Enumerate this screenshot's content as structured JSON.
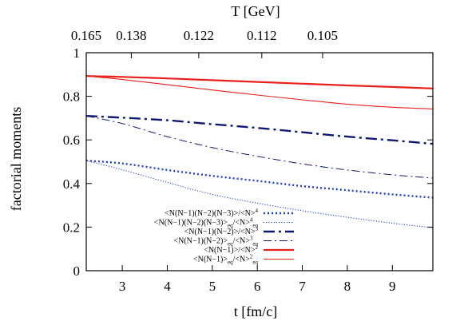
{
  "chart_data": {
    "type": "line",
    "title": "",
    "xlabel": "t [fm/c]",
    "ylabel": "factorial moments",
    "x2label": "T [GeV]",
    "xlim": [
      2.2,
      9.9
    ],
    "ylim": [
      0,
      1
    ],
    "grid": false,
    "legend_position": "bottom-center",
    "x_ticks": [
      3,
      4,
      5,
      6,
      7,
      8,
      9
    ],
    "x_tick_labels": [
      "3",
      "4",
      "5",
      "6",
      "7",
      "8",
      "9"
    ],
    "y_ticks": [
      0,
      0.2,
      0.4,
      0.6,
      0.8,
      1
    ],
    "y_tick_labels": [
      "0",
      "0.2",
      "0.4",
      "0.6",
      "0.8",
      "1"
    ],
    "x2_ticks": [
      {
        "t": 2.2,
        "label": "0.165"
      },
      {
        "t": 3.2,
        "label": "0.138"
      },
      {
        "t": 4.7,
        "label": "0.122"
      },
      {
        "t": 6.1,
        "label": "0.112"
      },
      {
        "t": 7.45,
        "label": "0.105"
      }
    ],
    "x": [
      2.2,
      3.0,
      4.0,
      5.0,
      6.0,
      7.0,
      8.0,
      9.0,
      9.9
    ],
    "series": [
      {
        "legend": {
          "main": "<N(N−1)(N−2)(N−3)>/<N>",
          "sup": "4",
          "sub": ""
        },
        "color": "#1f3fe6",
        "style": "dotted-thick",
        "values": [
          0.505,
          0.492,
          0.462,
          0.435,
          0.412,
          0.388,
          0.369,
          0.35,
          0.335
        ]
      },
      {
        "legend": {
          "main": "<N(N−1)(N−2)(N−3)>",
          "sub": "eq",
          "tail": "/<N>",
          "sup": "4",
          "sub2": "eq"
        },
        "color": "#1f3fe6",
        "style": "dotted-thin",
        "values": [
          0.505,
          0.463,
          0.405,
          0.35,
          0.31,
          0.275,
          0.245,
          0.218,
          0.197
        ]
      },
      {
        "legend": {
          "main": "<N(N−1)(N−2)>/<N>",
          "sup": "3",
          "sub": ""
        },
        "color": "#0d1a73",
        "style": "dashdot-thick",
        "values": [
          0.71,
          0.702,
          0.69,
          0.672,
          0.655,
          0.635,
          0.615,
          0.598,
          0.582
        ]
      },
      {
        "legend": {
          "main": "<N(N−1)(N−2)>",
          "sub": "eq",
          "tail": "/<N>",
          "sup": "3",
          "sub2": "eq"
        },
        "color": "#0d1a73",
        "style": "dashdot-thin",
        "values": [
          0.71,
          0.675,
          0.615,
          0.565,
          0.525,
          0.49,
          0.462,
          0.44,
          0.425
        ]
      },
      {
        "legend": {
          "main": "<N(N−1)>/<N>",
          "sup": "2",
          "sub": ""
        },
        "color": "#e8201a",
        "style": "solid-thick",
        "values": [
          0.893,
          0.889,
          0.882,
          0.874,
          0.866,
          0.858,
          0.85,
          0.843,
          0.836
        ]
      },
      {
        "legend": {
          "main": "<N(N−1)>",
          "sub": "eq",
          "tail": "/<N>",
          "sup": "2",
          "sub2": "eq"
        },
        "color": "#e8201a",
        "style": "solid-thin",
        "values": [
          0.893,
          0.877,
          0.853,
          0.829,
          0.806,
          0.784,
          0.764,
          0.75,
          0.742
        ]
      }
    ]
  }
}
